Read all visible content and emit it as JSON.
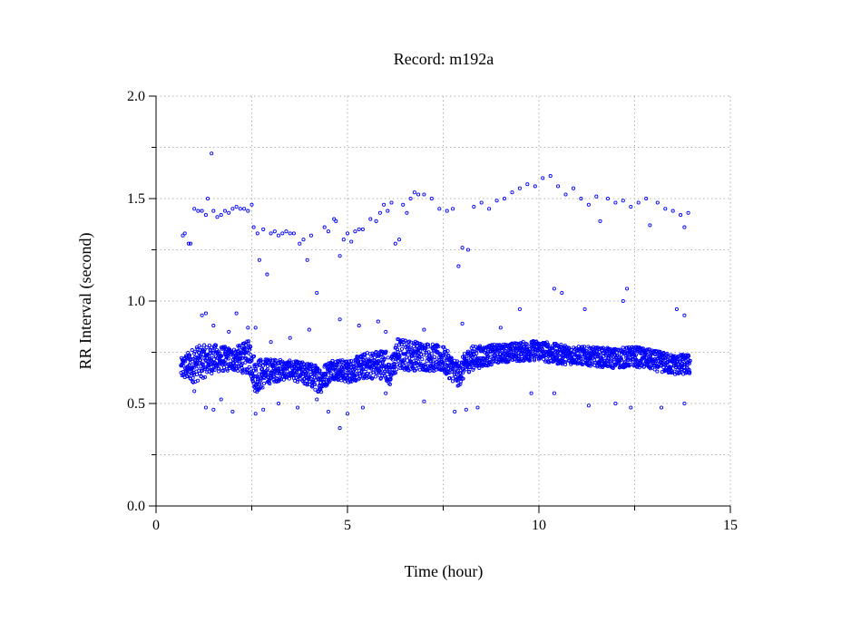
{
  "chart_data": {
    "type": "scatter",
    "title": "Record:  m192a",
    "xlabel": "Time (hour)",
    "ylabel": "RR Interval (second)",
    "xlim": [
      0,
      15
    ],
    "ylim": [
      0,
      2.0
    ],
    "xticks": [
      "0",
      "5",
      "10",
      "15"
    ],
    "yticks": [
      "0.0",
      "0.5",
      "1.0",
      "1.5",
      "2.0"
    ],
    "grid": true,
    "marker_color": "#0000ff",
    "dense_band": {
      "description_x_low_high": "RR interval range of dense beat-to-beat points",
      "profile": [
        [
          0.65,
          0.62,
          0.72
        ],
        [
          1.0,
          0.6,
          0.78
        ],
        [
          1.5,
          0.65,
          0.79
        ],
        [
          2.0,
          0.66,
          0.77
        ],
        [
          2.45,
          0.64,
          0.81
        ],
        [
          2.6,
          0.55,
          0.72
        ],
        [
          3.0,
          0.6,
          0.72
        ],
        [
          3.5,
          0.62,
          0.71
        ],
        [
          4.0,
          0.58,
          0.7
        ],
        [
          4.3,
          0.55,
          0.68
        ],
        [
          4.6,
          0.62,
          0.72
        ],
        [
          5.0,
          0.6,
          0.71
        ],
        [
          5.5,
          0.62,
          0.75
        ],
        [
          6.0,
          0.62,
          0.77
        ],
        [
          6.1,
          0.58,
          0.7
        ],
        [
          6.3,
          0.66,
          0.82
        ],
        [
          7.0,
          0.66,
          0.8
        ],
        [
          7.5,
          0.65,
          0.78
        ],
        [
          7.9,
          0.58,
          0.7
        ],
        [
          8.2,
          0.66,
          0.78
        ],
        [
          9.0,
          0.7,
          0.79
        ],
        [
          10.0,
          0.71,
          0.81
        ],
        [
          10.5,
          0.69,
          0.79
        ],
        [
          11.0,
          0.69,
          0.78
        ],
        [
          12.0,
          0.67,
          0.77
        ],
        [
          12.5,
          0.68,
          0.78
        ],
        [
          13.0,
          0.66,
          0.76
        ],
        [
          13.5,
          0.64,
          0.74
        ],
        [
          13.95,
          0.64,
          0.74
        ]
      ]
    },
    "points": [
      [
        0.7,
        1.32
      ],
      [
        0.75,
        1.33
      ],
      [
        0.85,
        1.28
      ],
      [
        0.9,
        1.28
      ],
      [
        1.0,
        1.45
      ],
      [
        1.1,
        1.44
      ],
      [
        1.2,
        1.44
      ],
      [
        1.3,
        1.42
      ],
      [
        1.35,
        1.5
      ],
      [
        1.45,
        1.72
      ],
      [
        1.5,
        1.44
      ],
      [
        1.6,
        1.41
      ],
      [
        1.7,
        1.42
      ],
      [
        1.8,
        1.44
      ],
      [
        1.9,
        1.43
      ],
      [
        2.0,
        1.45
      ],
      [
        2.1,
        1.46
      ],
      [
        2.2,
        1.45
      ],
      [
        2.3,
        1.45
      ],
      [
        2.4,
        1.44
      ],
      [
        2.5,
        1.47
      ],
      [
        2.55,
        1.36
      ],
      [
        2.65,
        1.33
      ],
      [
        2.7,
        1.2
      ],
      [
        2.8,
        1.35
      ],
      [
        2.9,
        1.13
      ],
      [
        3.0,
        1.33
      ],
      [
        3.1,
        1.34
      ],
      [
        3.2,
        1.32
      ],
      [
        3.3,
        1.33
      ],
      [
        3.4,
        1.34
      ],
      [
        3.5,
        1.33
      ],
      [
        3.6,
        1.33
      ],
      [
        3.75,
        1.28
      ],
      [
        3.85,
        1.3
      ],
      [
        3.95,
        1.2
      ],
      [
        4.05,
        1.32
      ],
      [
        4.2,
        1.04
      ],
      [
        4.4,
        1.36
      ],
      [
        4.5,
        1.34
      ],
      [
        4.65,
        1.4
      ],
      [
        4.7,
        1.39
      ],
      [
        4.8,
        1.22
      ],
      [
        4.9,
        1.3
      ],
      [
        5.0,
        1.33
      ],
      [
        5.1,
        1.29
      ],
      [
        5.2,
        1.34
      ],
      [
        5.3,
        1.35
      ],
      [
        5.4,
        1.35
      ],
      [
        5.6,
        1.4
      ],
      [
        5.75,
        1.39
      ],
      [
        5.85,
        1.43
      ],
      [
        5.95,
        1.47
      ],
      [
        6.05,
        1.44
      ],
      [
        6.15,
        1.48
      ],
      [
        6.25,
        1.28
      ],
      [
        6.35,
        1.3
      ],
      [
        6.45,
        1.47
      ],
      [
        6.55,
        1.43
      ],
      [
        6.65,
        1.5
      ],
      [
        6.75,
        1.53
      ],
      [
        6.85,
        1.52
      ],
      [
        7.0,
        1.52
      ],
      [
        7.2,
        1.5
      ],
      [
        7.4,
        1.45
      ],
      [
        7.6,
        1.44
      ],
      [
        7.75,
        1.45
      ],
      [
        7.9,
        1.17
      ],
      [
        8.0,
        1.26
      ],
      [
        8.15,
        1.25
      ],
      [
        8.3,
        1.46
      ],
      [
        8.5,
        1.48
      ],
      [
        8.7,
        1.45
      ],
      [
        8.9,
        1.49
      ],
      [
        9.1,
        1.5
      ],
      [
        9.3,
        1.53
      ],
      [
        9.5,
        1.55
      ],
      [
        9.7,
        1.57
      ],
      [
        9.9,
        1.56
      ],
      [
        10.1,
        1.6
      ],
      [
        10.3,
        1.61
      ],
      [
        10.5,
        1.56
      ],
      [
        10.7,
        1.52
      ],
      [
        10.9,
        1.55
      ],
      [
        11.1,
        1.5
      ],
      [
        11.3,
        1.47
      ],
      [
        11.5,
        1.51
      ],
      [
        11.6,
        1.39
      ],
      [
        11.8,
        1.5
      ],
      [
        12.0,
        1.48
      ],
      [
        12.2,
        1.49
      ],
      [
        12.4,
        1.46
      ],
      [
        12.6,
        1.48
      ],
      [
        12.8,
        1.5
      ],
      [
        12.9,
        1.37
      ],
      [
        13.1,
        1.48
      ],
      [
        13.3,
        1.45
      ],
      [
        13.5,
        1.44
      ],
      [
        13.7,
        1.42
      ],
      [
        13.8,
        1.36
      ],
      [
        13.9,
        1.43
      ],
      [
        1.2,
        0.93
      ],
      [
        1.3,
        0.94
      ],
      [
        1.5,
        0.88
      ],
      [
        1.9,
        0.85
      ],
      [
        2.1,
        0.94
      ],
      [
        2.4,
        0.87
      ],
      [
        2.6,
        0.87
      ],
      [
        3.0,
        0.8
      ],
      [
        3.5,
        0.82
      ],
      [
        4.0,
        0.86
      ],
      [
        4.8,
        0.91
      ],
      [
        5.3,
        0.88
      ],
      [
        5.8,
        0.9
      ],
      [
        6.0,
        0.85
      ],
      [
        7.0,
        0.86
      ],
      [
        8.0,
        0.89
      ],
      [
        9.0,
        0.87
      ],
      [
        9.5,
        0.96
      ],
      [
        10.4,
        1.06
      ],
      [
        10.6,
        1.04
      ],
      [
        11.2,
        0.96
      ],
      [
        12.3,
        1.06
      ],
      [
        12.2,
        1.0
      ],
      [
        13.6,
        0.96
      ],
      [
        13.8,
        0.93
      ],
      [
        1.0,
        0.56
      ],
      [
        1.3,
        0.48
      ],
      [
        1.5,
        0.47
      ],
      [
        1.7,
        0.52
      ],
      [
        2.0,
        0.46
      ],
      [
        2.6,
        0.45
      ],
      [
        2.8,
        0.47
      ],
      [
        3.2,
        0.5
      ],
      [
        3.7,
        0.48
      ],
      [
        4.2,
        0.52
      ],
      [
        4.5,
        0.46
      ],
      [
        4.8,
        0.38
      ],
      [
        5.0,
        0.45
      ],
      [
        5.4,
        0.48
      ],
      [
        6.0,
        0.55
      ],
      [
        7.0,
        0.51
      ],
      [
        7.8,
        0.46
      ],
      [
        8.1,
        0.47
      ],
      [
        8.4,
        0.48
      ],
      [
        9.8,
        0.55
      ],
      [
        10.4,
        0.55
      ],
      [
        11.3,
        0.49
      ],
      [
        12.0,
        0.5
      ],
      [
        12.4,
        0.48
      ],
      [
        13.2,
        0.48
      ],
      [
        13.8,
        0.5
      ]
    ]
  }
}
